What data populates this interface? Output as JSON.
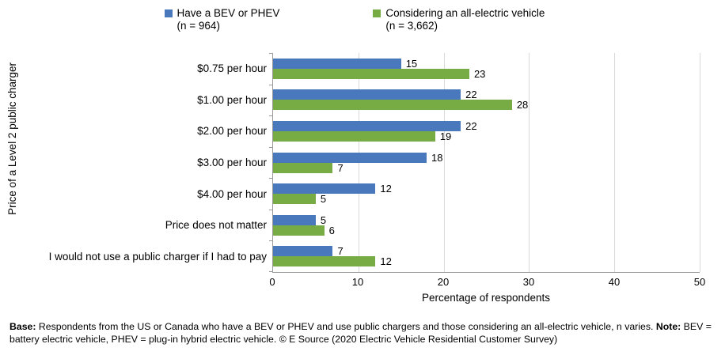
{
  "legend": [
    {
      "label": "Have a BEV or PHEV",
      "n": "(n = 964)",
      "color": "#4a78bd"
    },
    {
      "label": "Considering an all-electric vehicle",
      "n": "(n = 3,662)",
      "color": "#77ac44"
    }
  ],
  "chart_data": {
    "type": "bar",
    "orientation": "horizontal",
    "title": "",
    "categories": [
      "$0.75 per hour",
      "$1.00 per hour",
      "$2.00 per hour",
      "$3.00 per hour",
      "$4.00 per hour",
      "Price does not matter",
      "I would not use a public charger if I had to pay"
    ],
    "series": [
      {
        "name": "Have a BEV or PHEV (n = 964)",
        "color": "#4a78bd",
        "values": [
          15,
          22,
          22,
          18,
          12,
          5,
          7
        ]
      },
      {
        "name": "Considering an all-electric vehicle (n = 3,662)",
        "color": "#77ac44",
        "values": [
          23,
          28,
          19,
          7,
          5,
          6,
          12
        ]
      }
    ],
    "xlabel": "Percentage of respondents",
    "ylabel": "Price of a Level 2 public charger",
    "xlim": [
      0,
      50
    ],
    "xticks": [
      0,
      10,
      20,
      30,
      40,
      50
    ],
    "grid": true,
    "legend_position": "top",
    "gridline_color": "#d9d9d9",
    "axis_color": "#9b9b9b"
  },
  "footer": {
    "base_label": "Base:",
    "base_text": " Respondents from the US or Canada who have a BEV  or PHEV  and use public chargers and those considering an all-electric vehicle, n varies. ",
    "note_label": "Note:",
    "note_text": " BEV = battery electric vehicle, PHEV = plug-in hybrid electric vehicle. © E Source (2020 Electric Vehicle Residential Customer Survey)"
  }
}
